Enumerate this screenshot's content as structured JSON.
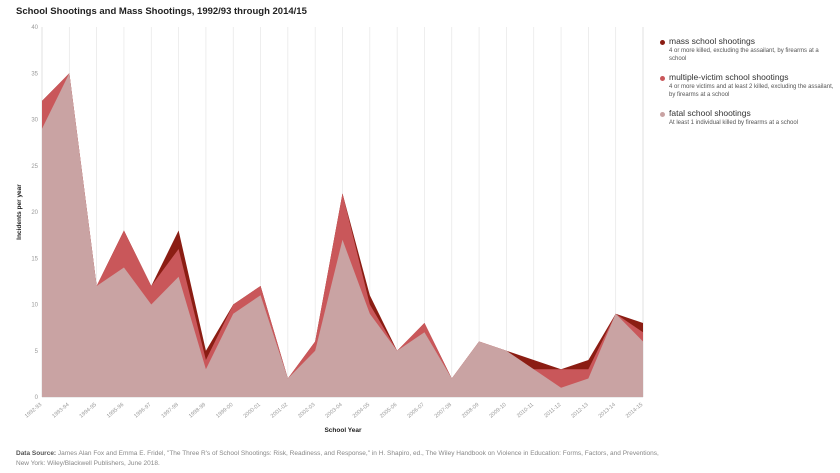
{
  "chart_data": {
    "type": "area",
    "title": "School Shootings and Mass Shootings, 1992/93 through 2014/15",
    "xlabel": "School Year",
    "ylabel": "Incidents per year",
    "ylim": [
      0,
      40
    ],
    "yticks": [
      0,
      5,
      10,
      15,
      20,
      25,
      30,
      35,
      40
    ],
    "categories": [
      "1992-93",
      "1993-94",
      "1994-95",
      "1995-96",
      "1996-97",
      "1997-98",
      "1998-99",
      "1999-00",
      "2000-01",
      "2001-02",
      "2002-03",
      "2003-04",
      "2004-05",
      "2005-06",
      "2006-07",
      "2007-08",
      "2008-09",
      "2009-10",
      "2010-11",
      "2011-12",
      "2012-13",
      "2013-14",
      "2014-15"
    ],
    "series": [
      {
        "name": "mass school shootings",
        "color": "#8b1d13",
        "description": "4 or more killed, excluding the assailant, by firearms at a school",
        "values": [
          32,
          35,
          12,
          18,
          12,
          18,
          5,
          10,
          12,
          2,
          6,
          22,
          11,
          5,
          8,
          2,
          6,
          5,
          4,
          3,
          4,
          9,
          8
        ]
      },
      {
        "name": "multiple-victim school shootings",
        "color": "#c9575a",
        "description": "4 or more victims and at least 2 killed, excluding the assailant, by firearms at a school",
        "values": [
          32,
          35,
          12,
          18,
          12,
          16,
          4,
          10,
          12,
          2,
          6,
          22,
          10,
          5,
          8,
          2,
          6,
          5,
          3,
          3,
          3,
          9,
          7
        ]
      },
      {
        "name": "fatal school shootings",
        "color": "#c9a3a3",
        "description": "At least 1 individual killed by firearms at a school",
        "values": [
          29,
          35,
          12,
          14,
          10,
          13,
          3,
          9,
          11,
          2,
          5,
          17,
          9,
          5,
          7,
          2,
          6,
          5,
          3,
          1,
          2,
          9,
          6
        ]
      }
    ],
    "legend_position": "right",
    "grid": "vertical"
  },
  "source": {
    "label": "Data Source:",
    "text": "James Alan Fox and Emma E. Fridel, \"The Three R's of School Shootings: Risk, Readiness, and Response,\" in H. Shapiro, ed., The Wiley Handbook on Violence in Education: Forms, Factors, and Preventions, New York: Wiley/Blackwell Publishers, June 2018."
  }
}
